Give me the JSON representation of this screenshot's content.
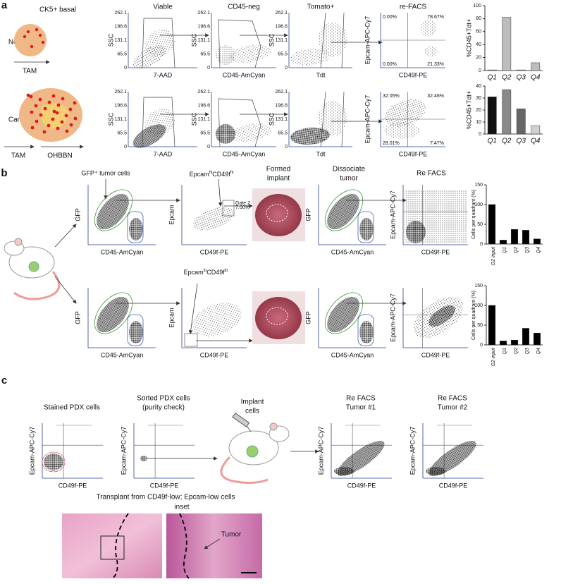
{
  "panel_a": {
    "label": "a",
    "cell_type": "CK5+ basal",
    "rows": [
      "Normal",
      "Cancer"
    ],
    "treatments": [
      "TAM",
      "OHBBN"
    ],
    "gates": [
      "Viable",
      "CD45-neg",
      "Tomato+",
      "re-FACS"
    ],
    "ssc_label": "SSC",
    "x_labels": [
      "7-AAD",
      "CD45-AmCyan",
      "Tdt",
      "CD49f-PE"
    ],
    "refacs_ylabel": "Epcam-APC-Cy7",
    "ssc_ticks": [
      "262.1",
      "196.6",
      "131.1",
      "65.5",
      "0"
    ],
    "quadrants": [
      [
        "0.00%",
        "78.67%",
        "0.00%",
        "21.33%"
      ],
      [
        "32.05%",
        "32.48%",
        "28.01%",
        "7.47%"
      ]
    ]
  },
  "panel_b": {
    "label": "b",
    "gfp_title": "GFP⁺ tumor cells",
    "hi_title": [
      "Epcam",
      "hi",
      "CD49f",
      "hi"
    ],
    "lo_title": [
      "Epcam",
      "lo",
      "CD49f",
      "lo"
    ],
    "implant_title": [
      "Formed",
      "implant"
    ],
    "dissociate_title": [
      "Dissociate",
      "tumor"
    ],
    "refacs_title": "Re FACS",
    "gate_label": [
      "Gate 2",
      "7.00%"
    ],
    "labels": {
      "gfp": "GFP",
      "cd45": "CD45-AmCyan",
      "epcam": "Epcam",
      "cd49f": "CD49f-PE",
      "epcam_apc": "Epcam-APC-Cy7"
    }
  },
  "panel_c": {
    "label": "c",
    "titles": [
      [
        "Stained PDX cells"
      ],
      [
        "Sorted PDX cells",
        "(purity check)"
      ],
      [
        "Implant",
        "cells"
      ],
      [
        "Re FACS",
        "Tumor #1"
      ],
      [
        "Re FACS",
        "Tumor #2"
      ]
    ],
    "ylabel": "Epcam-APC-Cy7",
    "xlabel": "CD49f-PE",
    "histology_title": "Transplant from CD49f-low; Epcam-low cells",
    "inset_label": "inset",
    "tumor_label": "Tumor"
  },
  "chart_data": [
    {
      "type": "bar",
      "ylabel": "%CD45+Tdt+",
      "categories": [
        "Q1",
        "Q2",
        "Q3",
        "Q4"
      ],
      "values": [
        1,
        82,
        1,
        12
      ],
      "colors": [
        "#bdbdbd",
        "#bdbdbd",
        "#bdbdbd",
        "#bdbdbd"
      ],
      "ylim": [
        0,
        100
      ],
      "yticks": [
        0,
        20,
        40,
        60,
        80,
        100
      ]
    },
    {
      "type": "bar",
      "ylabel": "%CD45+Tdt+",
      "categories": [
        "Q1",
        "Q2",
        "Q3",
        "Q4"
      ],
      "values": [
        31,
        37,
        21,
        7
      ],
      "colors": [
        "#111111",
        "#8a8a8a",
        "#666666",
        "#d0d0d0"
      ],
      "ylim": [
        0,
        40
      ],
      "yticks": [
        0,
        10,
        20,
        30,
        40
      ]
    },
    {
      "type": "bar",
      "ylabel": "Cells per quadrant (%)",
      "categories": [
        "G2 input",
        "Q1",
        "Q2",
        "Q3",
        "Q4"
      ],
      "values": [
        100,
        10,
        37,
        35,
        13
      ],
      "colors": [
        "#000000",
        "#000000",
        "#000000",
        "#000000",
        "#000000"
      ],
      "ylim": [
        0,
        150
      ],
      "yticks": [
        0,
        50,
        100,
        150
      ]
    },
    {
      "type": "bar",
      "ylabel": "Cells per quadrant (%)",
      "categories": [
        "G2 input",
        "Q1",
        "Q2",
        "Q3",
        "Q4"
      ],
      "values": [
        100,
        10,
        12,
        42,
        30
      ],
      "colors": [
        "#000000",
        "#000000",
        "#000000",
        "#000000",
        "#000000"
      ],
      "ylim": [
        0,
        150
      ],
      "yticks": [
        0,
        50,
        100,
        150
      ]
    }
  ]
}
